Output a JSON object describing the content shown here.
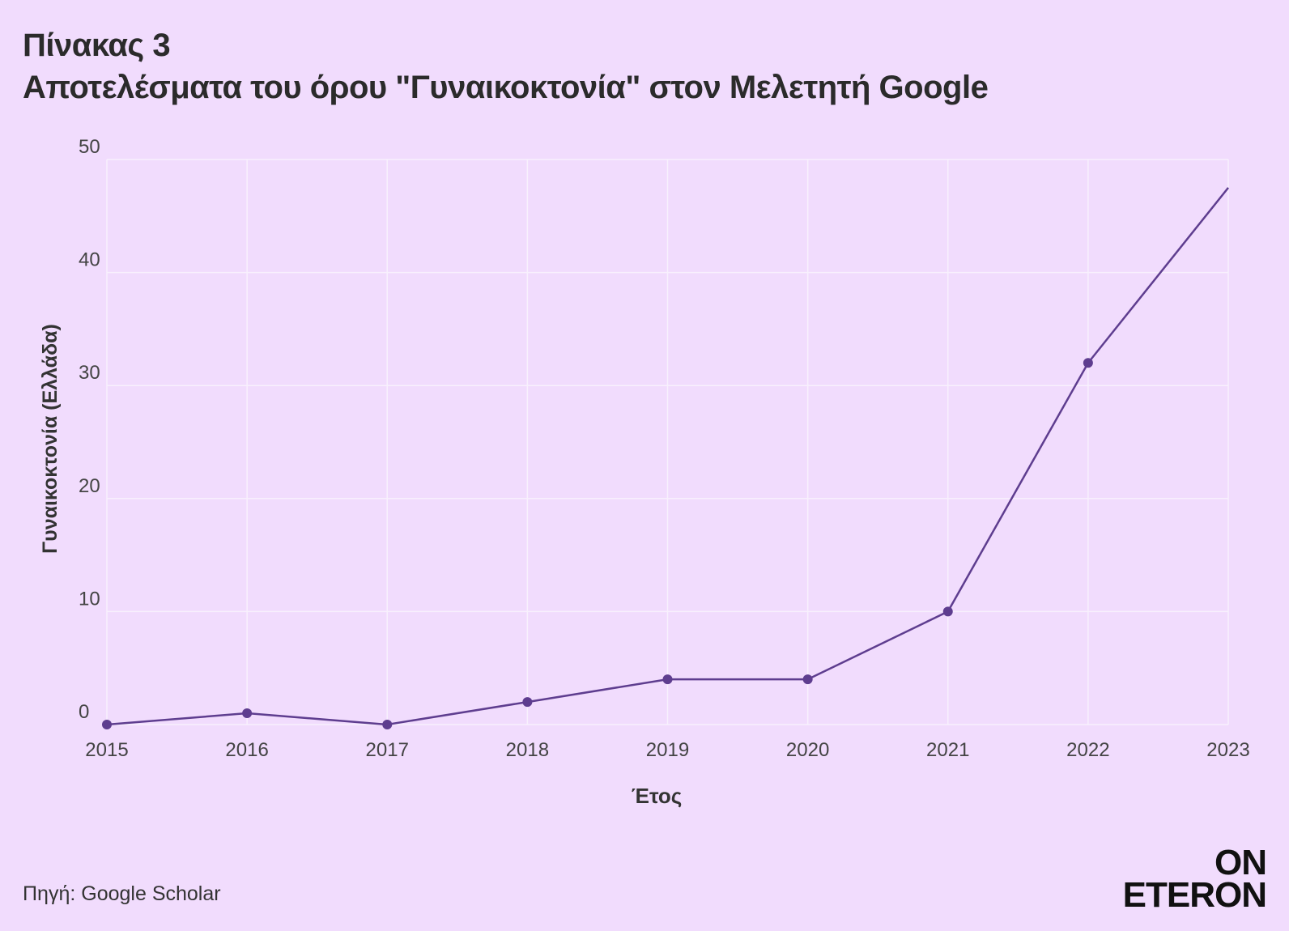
{
  "title": {
    "line1": "Πίνακας 3",
    "line2": "Αποτελέσματα του όρου \"Γυναικοκτονία\" στον Μελετητή Google"
  },
  "source": "Πηγή: Google Scholar",
  "logo": {
    "line1": "ON",
    "line2": "ETERON"
  },
  "colors": {
    "background": "#f1dcfd",
    "line": "#5e3d8f",
    "grid": "#f8f0fd",
    "text": "#333333"
  },
  "chart_data": {
    "type": "line",
    "title": "Αποτελέσματα του όρου \"Γυναικοκτονία\" στον Μελετητή Google",
    "xlabel": "Έτος",
    "ylabel": "Γυναικοκτονία (Ελλάδα)",
    "x": [
      2015,
      2016,
      2017,
      2018,
      2019,
      2020,
      2021,
      2022,
      2023
    ],
    "series": [
      {
        "values": [
          0,
          1,
          0,
          2,
          4,
          4,
          10,
          32,
          47.5
        ]
      }
    ],
    "ylim": [
      0,
      50
    ],
    "yticks": [
      0,
      10,
      20,
      30,
      40,
      50
    ],
    "xticks": [
      "2015",
      "2016",
      "2017",
      "2018",
      "2019",
      "2020",
      "2021",
      "2022",
      "2023"
    ],
    "grid": true,
    "legend": "none"
  }
}
